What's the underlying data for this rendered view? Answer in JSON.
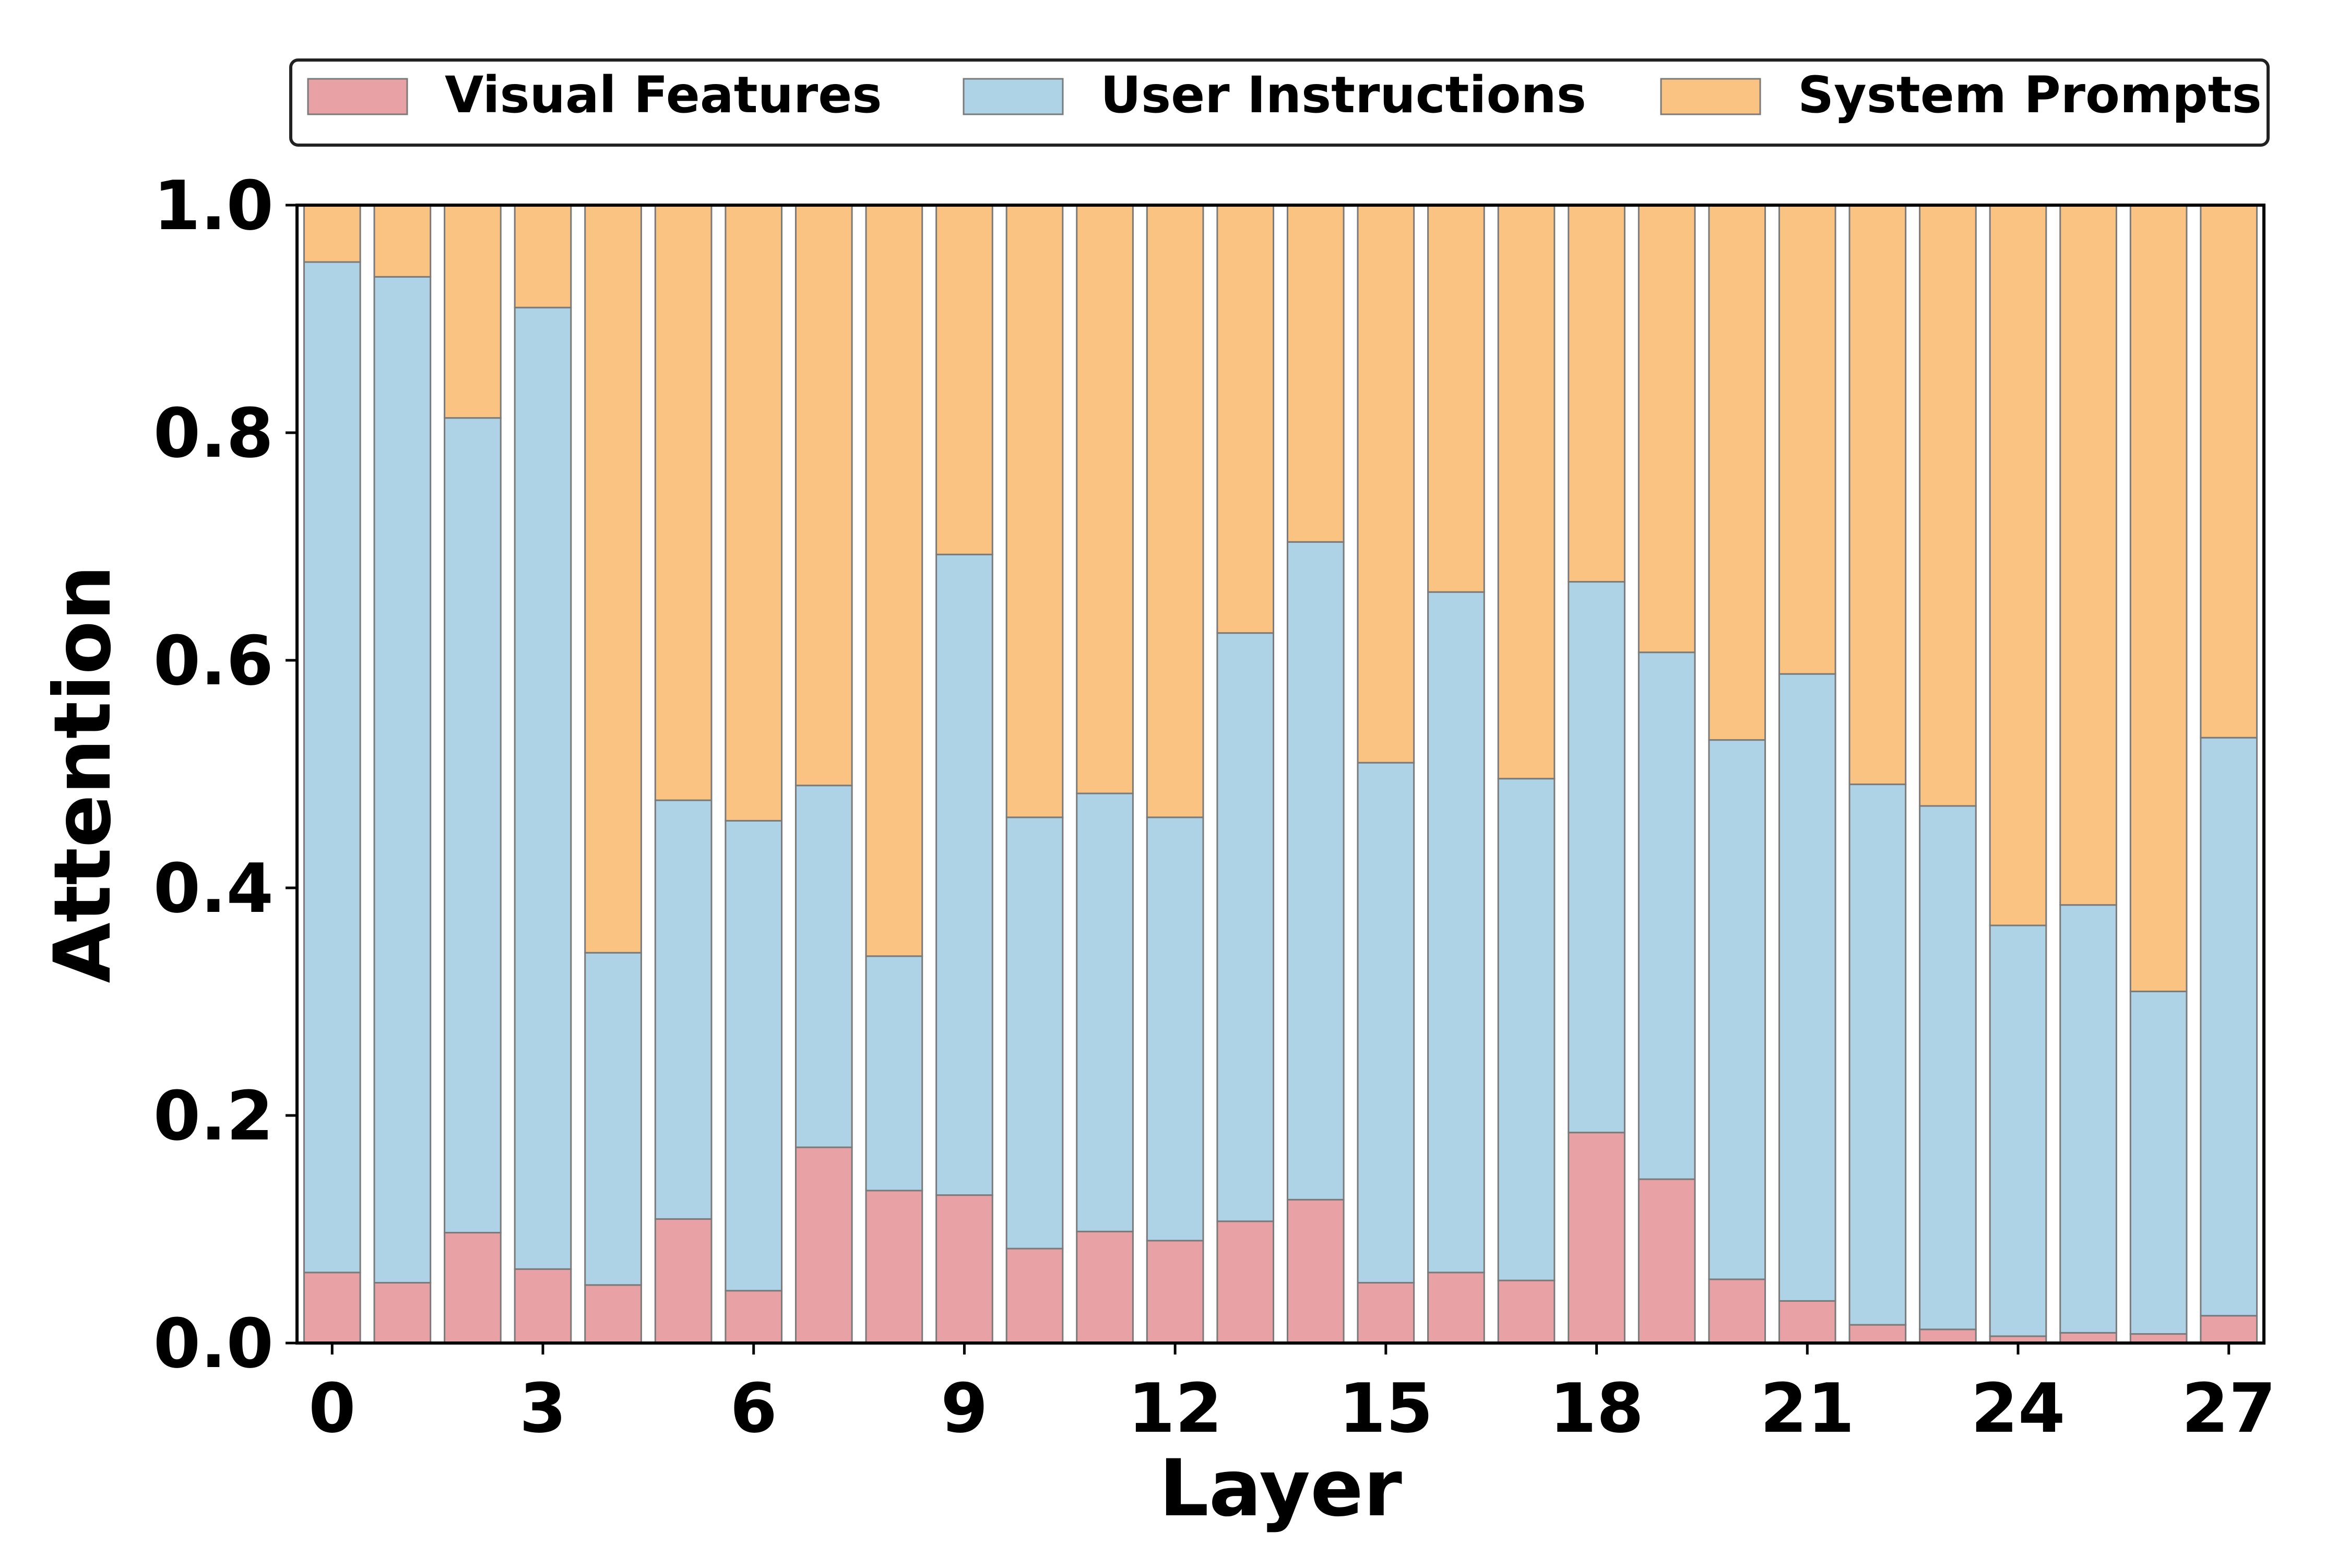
{
  "chart_data": {
    "type": "bar",
    "stacked": true,
    "normalized": true,
    "title": "",
    "xlabel": "Layer",
    "ylabel": "Attention",
    "ylim": [
      0,
      1
    ],
    "xlim": [
      -0.5,
      27.5
    ],
    "xticks": [
      0,
      3,
      6,
      9,
      12,
      15,
      18,
      21,
      24,
      27
    ],
    "xtick_labels": [
      "0",
      "3",
      "6",
      "9",
      "12",
      "15",
      "18",
      "21",
      "24",
      "27"
    ],
    "yticks": [
      0.0,
      0.2,
      0.4,
      0.6,
      0.8,
      1.0
    ],
    "ytick_labels": [
      "0.0",
      "0.2",
      "0.4",
      "0.6",
      "0.8",
      "1.0"
    ],
    "grid": false,
    "legend_position": "top",
    "categories": [
      0,
      1,
      2,
      3,
      4,
      5,
      6,
      7,
      8,
      9,
      10,
      11,
      12,
      13,
      14,
      15,
      16,
      17,
      18,
      19,
      20,
      21,
      22,
      23,
      24,
      25,
      26,
      27
    ],
    "series": [
      {
        "name": "Visual Features",
        "color": "#e8a2a5",
        "values": [
          0.062,
          0.053,
          0.097,
          0.065,
          0.051,
          0.109,
          0.046,
          0.172,
          0.134,
          0.13,
          0.083,
          0.098,
          0.09,
          0.107,
          0.126,
          0.053,
          0.062,
          0.055,
          0.185,
          0.144,
          0.056,
          0.037,
          0.016,
          0.012,
          0.006,
          0.009,
          0.008,
          0.024
        ]
      },
      {
        "name": "User Instructions",
        "color": "#afd3e6",
        "values": [
          0.888,
          0.884,
          0.716,
          0.845,
          0.292,
          0.368,
          0.413,
          0.318,
          0.206,
          0.563,
          0.379,
          0.385,
          0.372,
          0.517,
          0.578,
          0.457,
          0.598,
          0.441,
          0.484,
          0.463,
          0.474,
          0.551,
          0.475,
          0.46,
          0.361,
          0.376,
          0.301,
          0.508
        ]
      },
      {
        "name": "System Prompts",
        "color": "#fbc381",
        "values": [
          0.05,
          0.063,
          0.187,
          0.09,
          0.657,
          0.523,
          0.541,
          0.51,
          0.66,
          0.307,
          0.538,
          0.517,
          0.538,
          0.376,
          0.296,
          0.49,
          0.34,
          0.504,
          0.331,
          0.393,
          0.47,
          0.412,
          0.509,
          0.528,
          0.633,
          0.615,
          0.691,
          0.468
        ]
      }
    ]
  }
}
